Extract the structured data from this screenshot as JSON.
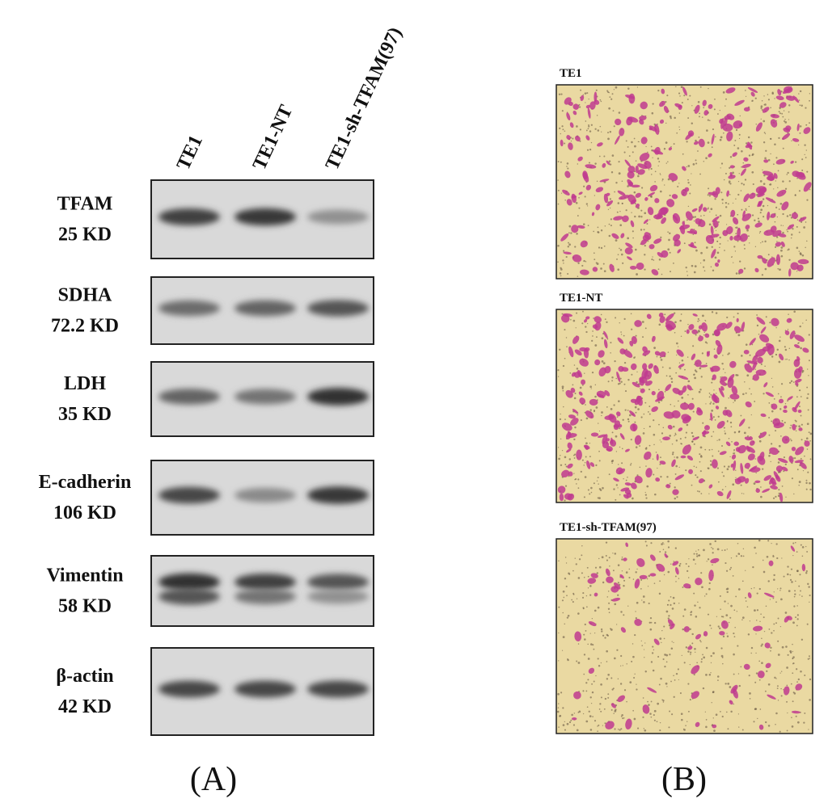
{
  "panel_a": {
    "lanes": [
      "TE1",
      "TE1-NT",
      "TE1-sh-TFAM(97)"
    ],
    "blots": [
      {
        "protein": "TFAM",
        "size": "25 KD"
      },
      {
        "protein": "SDHA",
        "size": "72.2 KD"
      },
      {
        "protein": "LDH",
        "size": "35 KD"
      },
      {
        "protein": "E-cadherin",
        "size": "106 KD"
      },
      {
        "protein": "Vimentin",
        "size": "58 KD"
      },
      {
        "protein": "β-actin",
        "size": "42 KD"
      }
    ],
    "label": "(A)"
  },
  "panel_b": {
    "images": [
      {
        "label": "TE1"
      },
      {
        "label": "TE1-NT"
      },
      {
        "label": "TE1-sh-TFAM(97)"
      }
    ],
    "label": "(B)"
  }
}
